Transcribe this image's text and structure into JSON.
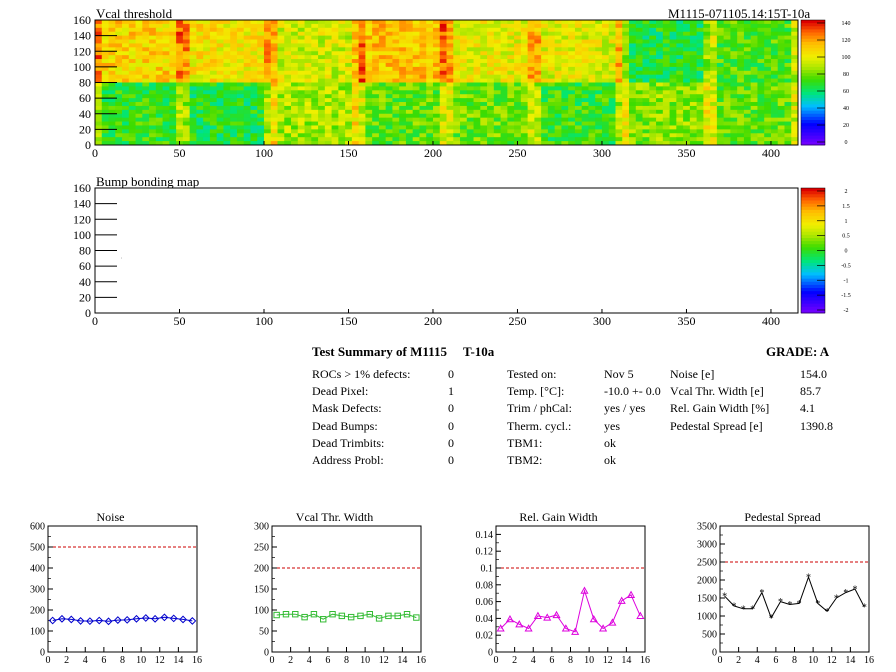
{
  "maps": [
    {
      "title": "Vcal threshold",
      "id_text": "M1115-071105.14:15T-10a",
      "x_ticks": [
        0,
        50,
        100,
        150,
        200,
        250,
        300,
        350,
        400
      ],
      "y_ticks": [
        0,
        20,
        40,
        60,
        80,
        100,
        120,
        140,
        160
      ],
      "scale_ticks": [
        "140",
        "120",
        "100",
        "80",
        "60",
        "40",
        "20",
        "0"
      ],
      "roc_means_top": [
        108,
        104,
        95,
        112,
        100,
        98,
        68,
        75
      ],
      "roc_means_bottom": [
        72,
        68,
        88,
        78,
        80,
        72,
        84,
        78
      ]
    },
    {
      "title": "Bump bonding map",
      "x_ticks": [
        0,
        50,
        100,
        150,
        200,
        250,
        300,
        350,
        400
      ],
      "y_ticks": [
        0,
        20,
        40,
        60,
        80,
        100,
        120,
        140,
        160
      ],
      "scale_ticks": [
        "2",
        "1.5",
        "1",
        "0.5",
        "0",
        "-0.5",
        "-1",
        "-1.5",
        "-2"
      ]
    }
  ],
  "summary": {
    "heading": "Test Summary of M1115",
    "temp_tag": "T-10a",
    "grade": "GRADE:  A",
    "defects": [
      {
        "label": "ROCs > 1% defects:",
        "value": "0"
      },
      {
        "label": "Dead Pixel:",
        "value": "1"
      },
      {
        "label": "Mask Defects:",
        "value": "0"
      },
      {
        "label": "Dead Bumps:",
        "value": "0"
      },
      {
        "label": "Dead Trimbits:",
        "value": "0"
      },
      {
        "label": "Address Probl:",
        "value": "0"
      }
    ],
    "conditions": [
      {
        "label": "Tested on:",
        "value": "Nov 5"
      },
      {
        "label": "Temp. [°C]:",
        "value": "-10.0 +- 0.0"
      },
      {
        "label": "Trim / phCal:",
        "value": "yes / yes"
      },
      {
        "label": "Therm. cycl.:",
        "value": "yes"
      },
      {
        "label": "TBM1:",
        "value": "ok"
      },
      {
        "label": "TBM2:",
        "value": "ok"
      }
    ],
    "metrics": [
      {
        "label": "Noise [e]",
        "value": "154.0"
      },
      {
        "label": "Vcal Thr. Width [e]",
        "value": "85.7"
      },
      {
        "label": "Rel. Gain Width [%]",
        "value": "4.1"
      },
      {
        "label": "Pedestal Spread [e]",
        "value": "1390.8"
      }
    ]
  },
  "chart_data": [
    {
      "type": "line",
      "title": "Noise",
      "x": [
        0.5,
        1.5,
        2.5,
        3.5,
        4.5,
        5.5,
        6.5,
        7.5,
        8.5,
        9.5,
        10.5,
        11.5,
        12.5,
        13.5,
        14.5,
        15.5
      ],
      "values": [
        150,
        158,
        155,
        148,
        147,
        150,
        146,
        152,
        153,
        158,
        162,
        158,
        165,
        160,
        155,
        148
      ],
      "xlim": [
        0,
        16
      ],
      "ylim": [
        0,
        600
      ],
      "x_ticks": [
        0,
        2,
        4,
        6,
        8,
        10,
        12,
        14,
        16
      ],
      "y_ticks": [
        0,
        100,
        200,
        300,
        400,
        500,
        600
      ],
      "threshold": 500,
      "color": "#0000cc",
      "marker": "diamond"
    },
    {
      "type": "line",
      "title": "Vcal Thr. Width",
      "x": [
        0.5,
        1.5,
        2.5,
        3.5,
        4.5,
        5.5,
        6.5,
        7.5,
        8.5,
        9.5,
        10.5,
        11.5,
        12.5,
        13.5,
        14.5,
        15.5
      ],
      "values": [
        88,
        90,
        90,
        83,
        90,
        78,
        90,
        86,
        83,
        86,
        90,
        80,
        86,
        86,
        90,
        82
      ],
      "xlim": [
        0,
        16
      ],
      "ylim": [
        0,
        300
      ],
      "x_ticks": [
        0,
        2,
        4,
        6,
        8,
        10,
        12,
        14,
        16
      ],
      "y_ticks": [
        0,
        50,
        100,
        150,
        200,
        250,
        300
      ],
      "threshold": 200,
      "color": "#33bb33",
      "marker": "square"
    },
    {
      "type": "line",
      "title": "Rel. Gain Width",
      "x": [
        0.5,
        1.5,
        2.5,
        3.5,
        4.5,
        5.5,
        6.5,
        7.5,
        8.5,
        9.5,
        10.5,
        11.5,
        12.5,
        13.5,
        14.5,
        15.5
      ],
      "values": [
        0.028,
        0.039,
        0.033,
        0.028,
        0.043,
        0.041,
        0.044,
        0.028,
        0.024,
        0.073,
        0.039,
        0.028,
        0.035,
        0.061,
        0.068,
        0.043
      ],
      "xlim": [
        0,
        16
      ],
      "ylim": [
        0,
        0.15
      ],
      "x_ticks": [
        0,
        2,
        4,
        6,
        8,
        10,
        12,
        14,
        16
      ],
      "y_ticks": [
        0,
        0.02,
        0.04,
        0.06,
        0.08,
        0.1,
        0.12,
        0.14
      ],
      "threshold": 0.1,
      "color": "#dd00dd",
      "marker": "triangle"
    },
    {
      "type": "line",
      "title": "Pedestal Spread",
      "x": [
        0.5,
        1.5,
        2.5,
        3.5,
        4.5,
        5.5,
        6.5,
        7.5,
        8.5,
        9.5,
        10.5,
        11.5,
        12.5,
        13.5,
        14.5,
        15.5
      ],
      "values": [
        1550,
        1280,
        1200,
        1200,
        1650,
        950,
        1400,
        1320,
        1350,
        2080,
        1350,
        1130,
        1500,
        1650,
        1750,
        1250
      ],
      "xlim": [
        0,
        16
      ],
      "ylim": [
        0,
        3500
      ],
      "x_ticks": [
        0,
        2,
        4,
        6,
        8,
        10,
        12,
        14,
        16
      ],
      "y_ticks": [
        0,
        500,
        1000,
        1500,
        2000,
        2500,
        3000,
        3500
      ],
      "threshold": 2500,
      "color": "#000000",
      "marker": "star"
    }
  ]
}
